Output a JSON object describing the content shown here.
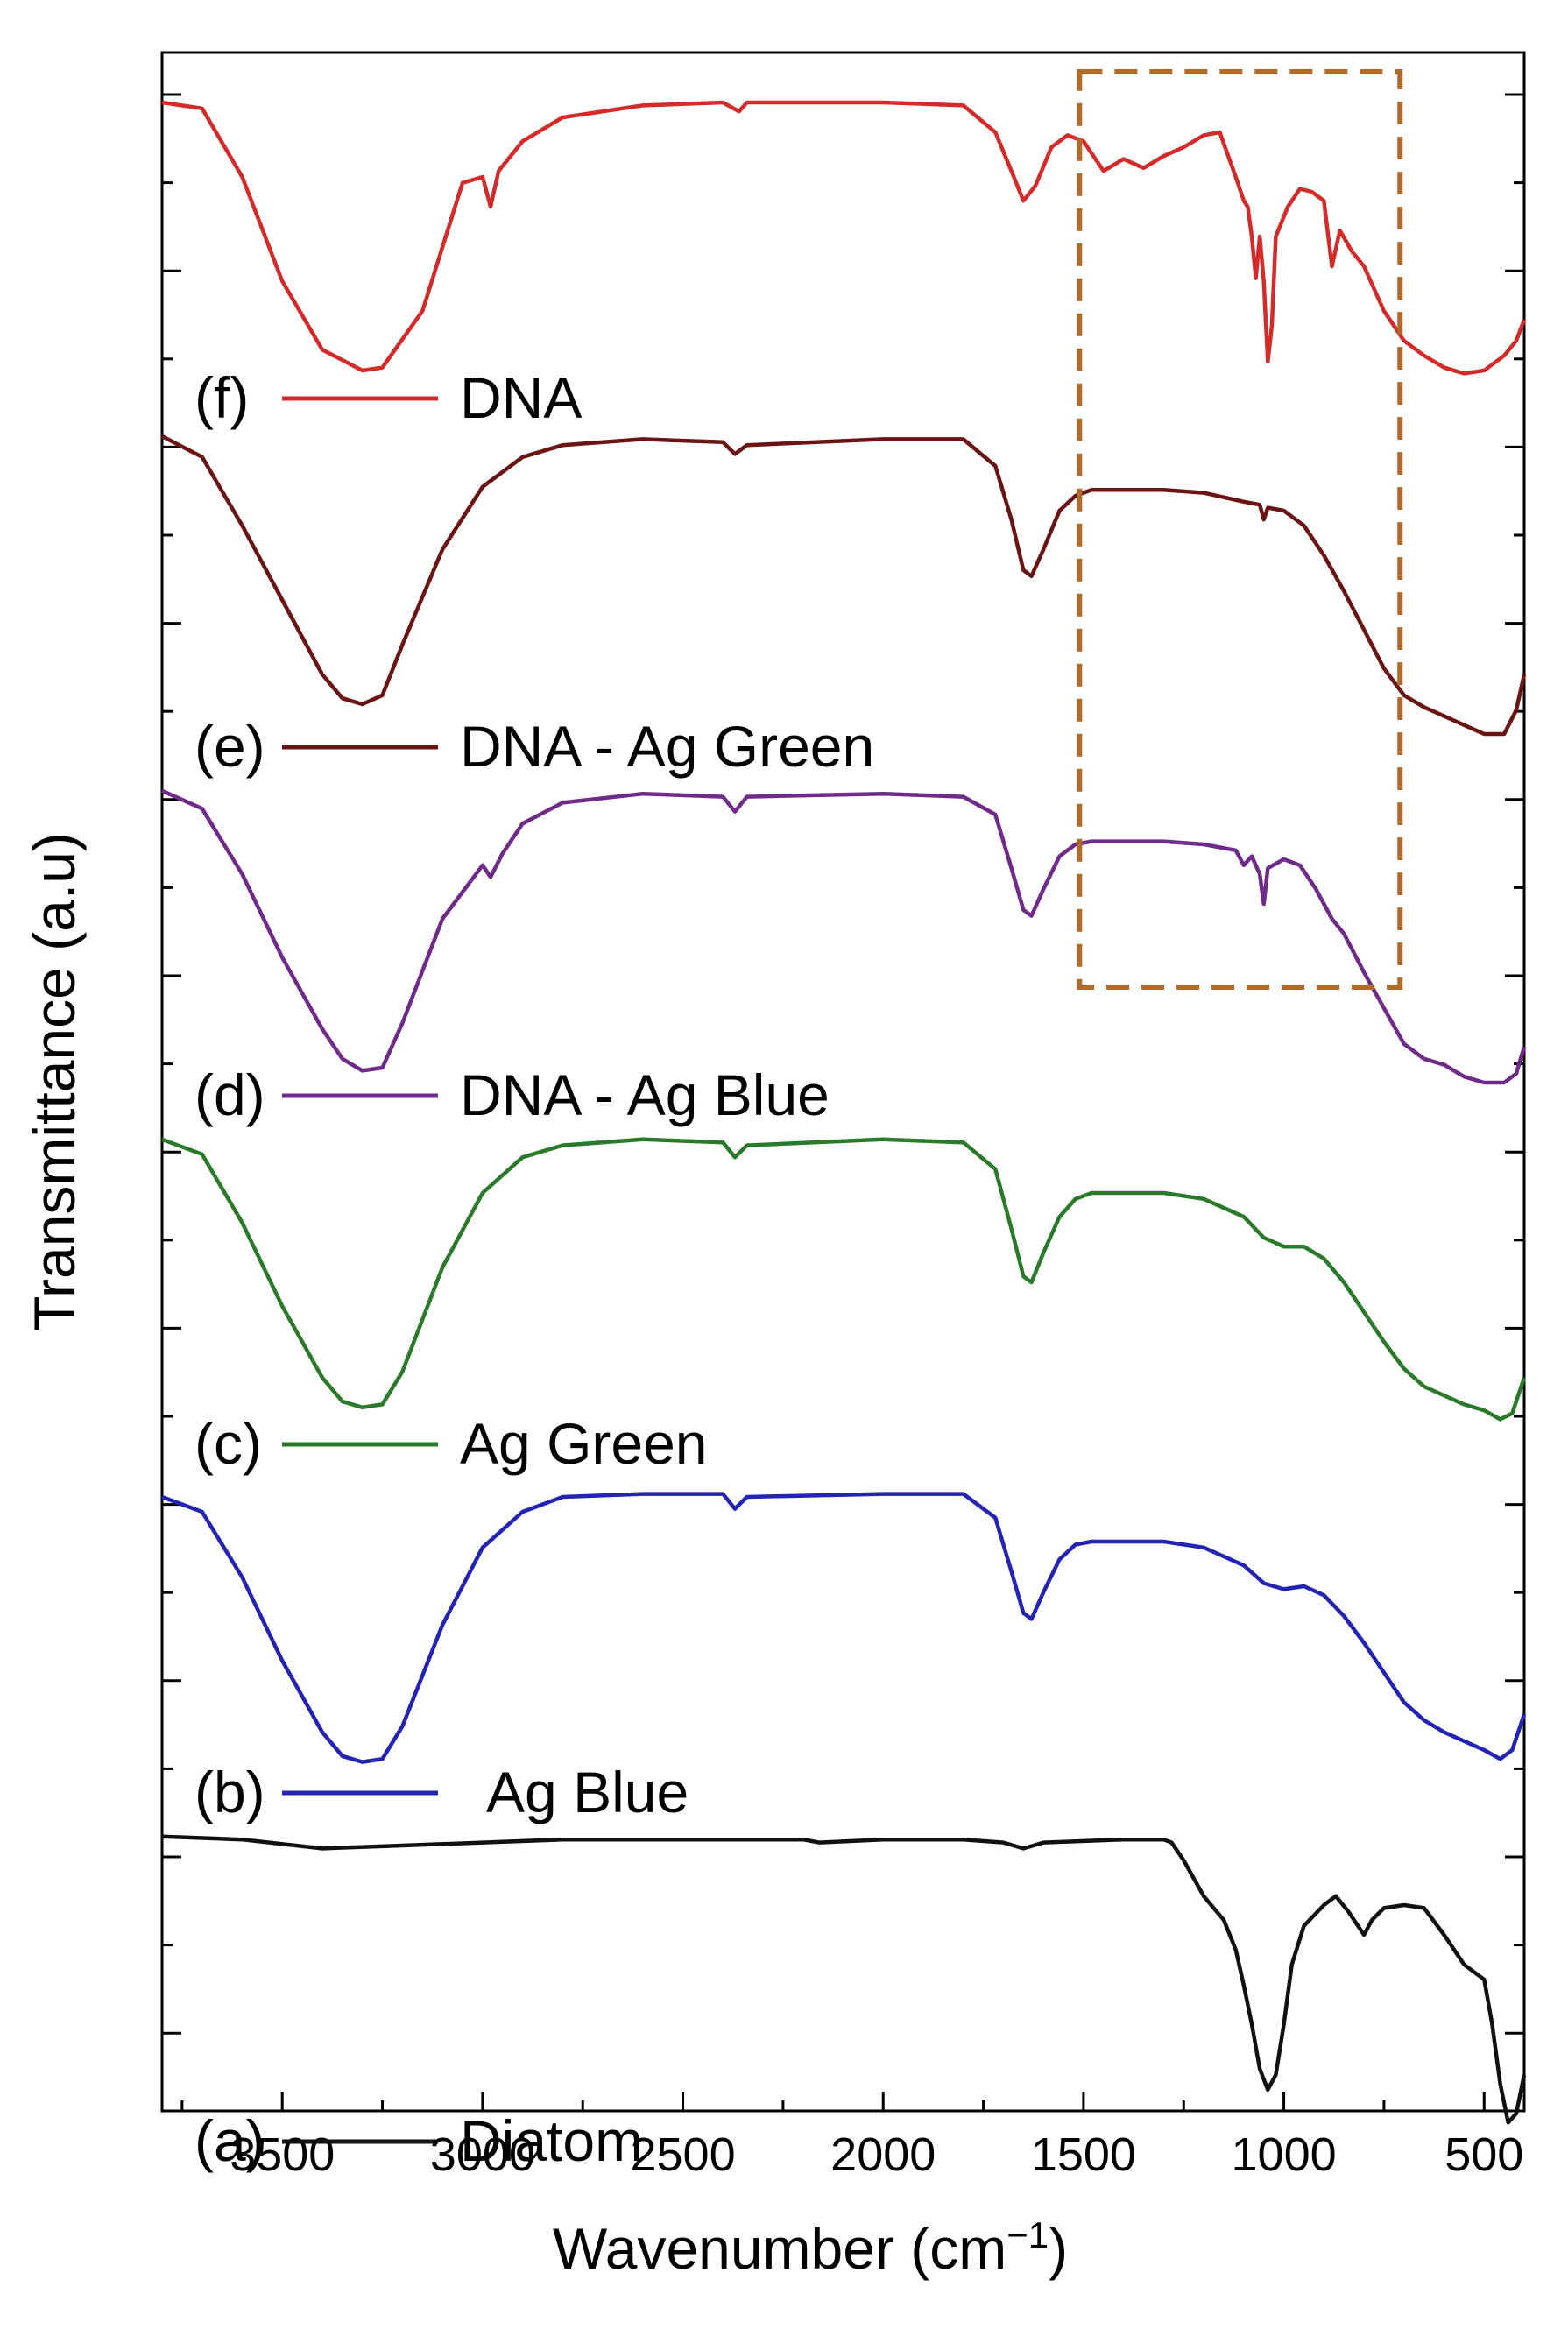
{
  "chart_data": {
    "type": "line",
    "title": "",
    "xlabel": "Wavenumber (cm",
    "xlabel_sup": "−1",
    "xlabel_close": ")",
    "ylabel": "Transmittance (a.u)",
    "xlim": [
      3800,
      400
    ],
    "x_reversed": true,
    "x_ticks": [
      3500,
      3000,
      2500,
      2000,
      1500,
      1000,
      500
    ],
    "y_ticks_labeled": false,
    "grid": false,
    "highlight_box": {
      "x_range": [
        1510,
        710
      ],
      "color": "#b06a2c",
      "style": "dashed",
      "over_series": [
        "(f)",
        "(e)",
        "(d)"
      ]
    },
    "series": [
      {
        "tag": "(f)",
        "name": "DNA",
        "color": "#d42a2a",
        "offset": 5,
        "points": [
          [
            3800,
            0.95
          ],
          [
            3700,
            0.93
          ],
          [
            3600,
            0.7
          ],
          [
            3500,
            0.35
          ],
          [
            3400,
            0.12
          ],
          [
            3300,
            0.05
          ],
          [
            3250,
            0.06
          ],
          [
            3150,
            0.25
          ],
          [
            3050,
            0.68
          ],
          [
            3000,
            0.7
          ],
          [
            2980,
            0.6
          ],
          [
            2960,
            0.72
          ],
          [
            2900,
            0.82
          ],
          [
            2800,
            0.9
          ],
          [
            2600,
            0.94
          ],
          [
            2400,
            0.95
          ],
          [
            2360,
            0.92
          ],
          [
            2340,
            0.95
          ],
          [
            2000,
            0.95
          ],
          [
            1800,
            0.94
          ],
          [
            1720,
            0.85
          ],
          [
            1680,
            0.72
          ],
          [
            1650,
            0.62
          ],
          [
            1620,
            0.67
          ],
          [
            1580,
            0.8
          ],
          [
            1540,
            0.84
          ],
          [
            1500,
            0.82
          ],
          [
            1450,
            0.72
          ],
          [
            1400,
            0.76
          ],
          [
            1350,
            0.73
          ],
          [
            1300,
            0.77
          ],
          [
            1250,
            0.8
          ],
          [
            1200,
            0.84
          ],
          [
            1160,
            0.85
          ],
          [
            1120,
            0.7
          ],
          [
            1100,
            0.62
          ],
          [
            1090,
            0.6
          ],
          [
            1080,
            0.5
          ],
          [
            1070,
            0.36
          ],
          [
            1060,
            0.5
          ],
          [
            1050,
            0.35
          ],
          [
            1040,
            0.08
          ],
          [
            1030,
            0.2
          ],
          [
            1020,
            0.5
          ],
          [
            990,
            0.6
          ],
          [
            960,
            0.66
          ],
          [
            930,
            0.65
          ],
          [
            900,
            0.62
          ],
          [
            880,
            0.4
          ],
          [
            860,
            0.52
          ],
          [
            830,
            0.45
          ],
          [
            800,
            0.4
          ],
          [
            750,
            0.25
          ],
          [
            700,
            0.15
          ],
          [
            650,
            0.1
          ],
          [
            600,
            0.06
          ],
          [
            550,
            0.04
          ],
          [
            500,
            0.05
          ],
          [
            450,
            0.1
          ],
          [
            420,
            0.15
          ],
          [
            400,
            0.22
          ]
        ]
      },
      {
        "tag": "(e)",
        "name": "DNA - Ag Green",
        "color": "#6b1414",
        "offset": 4,
        "points": [
          [
            3800,
            1.0
          ],
          [
            3700,
            0.93
          ],
          [
            3600,
            0.7
          ],
          [
            3500,
            0.45
          ],
          [
            3400,
            0.2
          ],
          [
            3350,
            0.12
          ],
          [
            3300,
            0.1
          ],
          [
            3250,
            0.13
          ],
          [
            3200,
            0.3
          ],
          [
            3100,
            0.62
          ],
          [
            3000,
            0.83
          ],
          [
            2900,
            0.93
          ],
          [
            2800,
            0.97
          ],
          [
            2600,
            0.99
          ],
          [
            2400,
            0.98
          ],
          [
            2370,
            0.94
          ],
          [
            2340,
            0.97
          ],
          [
            2000,
            0.99
          ],
          [
            1800,
            0.99
          ],
          [
            1720,
            0.9
          ],
          [
            1680,
            0.72
          ],
          [
            1650,
            0.55
          ],
          [
            1630,
            0.53
          ],
          [
            1600,
            0.62
          ],
          [
            1560,
            0.75
          ],
          [
            1520,
            0.8
          ],
          [
            1480,
            0.82
          ],
          [
            1300,
            0.82
          ],
          [
            1200,
            0.81
          ],
          [
            1100,
            0.78
          ],
          [
            1060,
            0.77
          ],
          [
            1050,
            0.72
          ],
          [
            1040,
            0.76
          ],
          [
            1000,
            0.75
          ],
          [
            950,
            0.7
          ],
          [
            900,
            0.6
          ],
          [
            850,
            0.48
          ],
          [
            800,
            0.35
          ],
          [
            750,
            0.22
          ],
          [
            700,
            0.13
          ],
          [
            650,
            0.09
          ],
          [
            600,
            0.06
          ],
          [
            550,
            0.03
          ],
          [
            500,
            0.0
          ],
          [
            450,
            0.0
          ],
          [
            420,
            0.08
          ],
          [
            400,
            0.2
          ]
        ]
      },
      {
        "tag": "(d)",
        "name": "DNA - Ag Blue",
        "color": "#6f2a8a",
        "offset": 3,
        "points": [
          [
            3800,
            0.98
          ],
          [
            3700,
            0.92
          ],
          [
            3600,
            0.7
          ],
          [
            3500,
            0.42
          ],
          [
            3400,
            0.18
          ],
          [
            3350,
            0.08
          ],
          [
            3300,
            0.04
          ],
          [
            3250,
            0.05
          ],
          [
            3200,
            0.2
          ],
          [
            3100,
            0.55
          ],
          [
            3000,
            0.73
          ],
          [
            2980,
            0.69
          ],
          [
            2950,
            0.77
          ],
          [
            2900,
            0.87
          ],
          [
            2800,
            0.94
          ],
          [
            2600,
            0.97
          ],
          [
            2400,
            0.96
          ],
          [
            2370,
            0.91
          ],
          [
            2340,
            0.96
          ],
          [
            2000,
            0.97
          ],
          [
            1800,
            0.96
          ],
          [
            1720,
            0.9
          ],
          [
            1680,
            0.72
          ],
          [
            1650,
            0.58
          ],
          [
            1630,
            0.56
          ],
          [
            1600,
            0.65
          ],
          [
            1560,
            0.76
          ],
          [
            1520,
            0.8
          ],
          [
            1480,
            0.81
          ],
          [
            1300,
            0.81
          ],
          [
            1200,
            0.8
          ],
          [
            1120,
            0.78
          ],
          [
            1100,
            0.73
          ],
          [
            1080,
            0.76
          ],
          [
            1060,
            0.7
          ],
          [
            1050,
            0.6
          ],
          [
            1040,
            0.72
          ],
          [
            1000,
            0.75
          ],
          [
            960,
            0.73
          ],
          [
            920,
            0.65
          ],
          [
            880,
            0.55
          ],
          [
            850,
            0.5
          ],
          [
            800,
            0.37
          ],
          [
            750,
            0.25
          ],
          [
            700,
            0.13
          ],
          [
            650,
            0.08
          ],
          [
            600,
            0.06
          ],
          [
            550,
            0.02
          ],
          [
            500,
            0.0
          ],
          [
            450,
            0.0
          ],
          [
            420,
            0.03
          ],
          [
            400,
            0.12
          ]
        ]
      },
      {
        "tag": "(c)",
        "name": "Ag Green",
        "color": "#2a7a2a",
        "offset": 2,
        "points": [
          [
            3800,
            0.98
          ],
          [
            3700,
            0.93
          ],
          [
            3600,
            0.7
          ],
          [
            3500,
            0.42
          ],
          [
            3400,
            0.18
          ],
          [
            3350,
            0.1
          ],
          [
            3300,
            0.08
          ],
          [
            3250,
            0.09
          ],
          [
            3200,
            0.2
          ],
          [
            3100,
            0.55
          ],
          [
            3000,
            0.8
          ],
          [
            2900,
            0.92
          ],
          [
            2800,
            0.96
          ],
          [
            2600,
            0.98
          ],
          [
            2400,
            0.97
          ],
          [
            2370,
            0.92
          ],
          [
            2340,
            0.96
          ],
          [
            2000,
            0.98
          ],
          [
            1800,
            0.97
          ],
          [
            1720,
            0.88
          ],
          [
            1680,
            0.68
          ],
          [
            1650,
            0.52
          ],
          [
            1630,
            0.5
          ],
          [
            1600,
            0.6
          ],
          [
            1560,
            0.72
          ],
          [
            1520,
            0.78
          ],
          [
            1480,
            0.8
          ],
          [
            1300,
            0.8
          ],
          [
            1200,
            0.78
          ],
          [
            1100,
            0.72
          ],
          [
            1050,
            0.65
          ],
          [
            1000,
            0.62
          ],
          [
            950,
            0.62
          ],
          [
            900,
            0.58
          ],
          [
            850,
            0.5
          ],
          [
            800,
            0.4
          ],
          [
            750,
            0.3
          ],
          [
            700,
            0.21
          ],
          [
            650,
            0.15
          ],
          [
            600,
            0.12
          ],
          [
            550,
            0.09
          ],
          [
            500,
            0.07
          ],
          [
            460,
            0.04
          ],
          [
            430,
            0.06
          ],
          [
            400,
            0.18
          ]
        ]
      },
      {
        "tag": "(b)",
        "name": "Ag Blue",
        "color": "#2323b4",
        "offset": 1,
        "points": [
          [
            3800,
            0.95
          ],
          [
            3700,
            0.9
          ],
          [
            3600,
            0.68
          ],
          [
            3500,
            0.4
          ],
          [
            3400,
            0.16
          ],
          [
            3350,
            0.08
          ],
          [
            3300,
            0.06
          ],
          [
            3250,
            0.07
          ],
          [
            3200,
            0.18
          ],
          [
            3100,
            0.52
          ],
          [
            3000,
            0.78
          ],
          [
            2900,
            0.9
          ],
          [
            2800,
            0.95
          ],
          [
            2600,
            0.96
          ],
          [
            2400,
            0.96
          ],
          [
            2370,
            0.91
          ],
          [
            2340,
            0.95
          ],
          [
            2000,
            0.96
          ],
          [
            1800,
            0.96
          ],
          [
            1720,
            0.88
          ],
          [
            1680,
            0.7
          ],
          [
            1650,
            0.56
          ],
          [
            1630,
            0.54
          ],
          [
            1600,
            0.63
          ],
          [
            1560,
            0.74
          ],
          [
            1520,
            0.79
          ],
          [
            1480,
            0.8
          ],
          [
            1300,
            0.8
          ],
          [
            1200,
            0.78
          ],
          [
            1100,
            0.72
          ],
          [
            1050,
            0.66
          ],
          [
            1000,
            0.64
          ],
          [
            950,
            0.65
          ],
          [
            900,
            0.62
          ],
          [
            850,
            0.55
          ],
          [
            800,
            0.46
          ],
          [
            750,
            0.36
          ],
          [
            700,
            0.26
          ],
          [
            650,
            0.2
          ],
          [
            600,
            0.16
          ],
          [
            550,
            0.13
          ],
          [
            500,
            0.1
          ],
          [
            460,
            0.07
          ],
          [
            430,
            0.1
          ],
          [
            400,
            0.22
          ]
        ]
      },
      {
        "tag": "(a)",
        "name": "Diatom",
        "color": "#111111",
        "offset": 0,
        "points": [
          [
            3800,
            0.98
          ],
          [
            3600,
            0.97
          ],
          [
            3400,
            0.94
          ],
          [
            3200,
            0.95
          ],
          [
            3000,
            0.96
          ],
          [
            2800,
            0.97
          ],
          [
            2400,
            0.97
          ],
          [
            2200,
            0.97
          ],
          [
            2160,
            0.96
          ],
          [
            2000,
            0.97
          ],
          [
            1800,
            0.97
          ],
          [
            1700,
            0.96
          ],
          [
            1650,
            0.94
          ],
          [
            1600,
            0.96
          ],
          [
            1400,
            0.97
          ],
          [
            1300,
            0.97
          ],
          [
            1280,
            0.96
          ],
          [
            1250,
            0.9
          ],
          [
            1200,
            0.78
          ],
          [
            1150,
            0.7
          ],
          [
            1120,
            0.6
          ],
          [
            1100,
            0.48
          ],
          [
            1080,
            0.35
          ],
          [
            1060,
            0.2
          ],
          [
            1040,
            0.13
          ],
          [
            1020,
            0.18
          ],
          [
            1000,
            0.35
          ],
          [
            980,
            0.55
          ],
          [
            950,
            0.68
          ],
          [
            900,
            0.75
          ],
          [
            870,
            0.78
          ],
          [
            840,
            0.73
          ],
          [
            800,
            0.65
          ],
          [
            780,
            0.7
          ],
          [
            750,
            0.74
          ],
          [
            700,
            0.75
          ],
          [
            650,
            0.74
          ],
          [
            600,
            0.65
          ],
          [
            550,
            0.55
          ],
          [
            500,
            0.5
          ],
          [
            480,
            0.35
          ],
          [
            460,
            0.15
          ],
          [
            440,
            0.02
          ],
          [
            420,
            0.05
          ],
          [
            400,
            0.18
          ]
        ]
      }
    ]
  }
}
